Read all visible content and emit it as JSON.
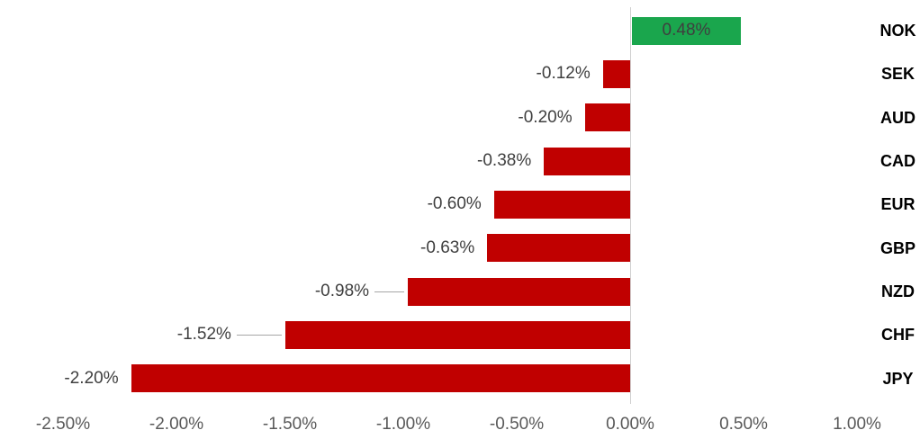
{
  "chart_data": {
    "type": "bar",
    "orientation": "horizontal",
    "title": "",
    "xlabel": "",
    "ylabel": "",
    "grid": false,
    "legend": "none",
    "xlim": [
      -2.5,
      1.0
    ],
    "categories": [
      "NOK",
      "SEK",
      "AUD",
      "CAD",
      "EUR",
      "GBP",
      "NZD",
      "CHF",
      "JPY"
    ],
    "values": [
      0.48,
      -0.12,
      -0.2,
      -0.38,
      -0.6,
      -0.63,
      -0.98,
      -1.52,
      -2.2
    ],
    "x_ticks": [
      "-2.50%",
      "-2.00%",
      "-1.50%",
      "-1.00%",
      "-0.50%",
      "0.00%",
      "0.50%",
      "1.00%"
    ],
    "x_tick_values": [
      -2.5,
      -2.0,
      -1.5,
      -1.0,
      -0.5,
      0.0,
      0.5,
      1.0
    ],
    "colors": {
      "bar_positive": "#1aa64d",
      "bar_negative": "#c00000",
      "axis_line": "#cfcfcf",
      "value_label": "#3f3f3f",
      "tick_label": "#595959",
      "category_label": "#000000",
      "leader_line": "#a6a6a6"
    },
    "points": [
      {
        "name": "NOK",
        "value": 0.48,
        "label": "0.48%",
        "label_placement": "inside"
      },
      {
        "name": "SEK",
        "value": -0.12,
        "label": "-0.12%",
        "label_placement": "outside"
      },
      {
        "name": "AUD",
        "value": -0.2,
        "label": "-0.20%",
        "label_placement": "outside"
      },
      {
        "name": "CAD",
        "value": -0.38,
        "label": "-0.38%",
        "label_placement": "outside"
      },
      {
        "name": "EUR",
        "value": -0.6,
        "label": "-0.60%",
        "label_placement": "outside"
      },
      {
        "name": "GBP",
        "value": -0.63,
        "label": "-0.63%",
        "label_placement": "outside"
      },
      {
        "name": "NZD",
        "value": -0.98,
        "label": "-0.98%",
        "label_placement": "outside",
        "label_gap": 43,
        "leader": true
      },
      {
        "name": "CHF",
        "value": -1.52,
        "label": "-1.52%",
        "label_placement": "outside",
        "label_gap": 60,
        "leader": true
      },
      {
        "name": "JPY",
        "value": -2.2,
        "label": "-2.20%",
        "label_placement": "outside"
      }
    ]
  }
}
